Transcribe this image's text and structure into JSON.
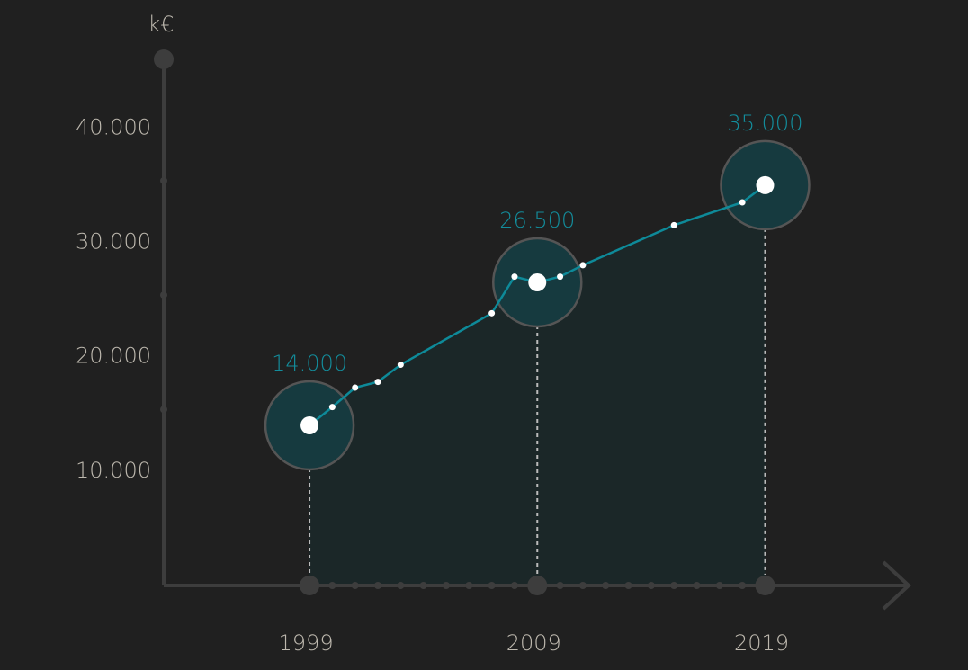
{
  "chart_data": {
    "type": "area",
    "y_label": "k€",
    "x": [
      1999,
      2000,
      2001,
      2002,
      2003,
      2007,
      2008,
      2009,
      2010,
      2011,
      2015,
      2018,
      2019
    ],
    "values": [
      14000,
      15600,
      17300,
      17800,
      19300,
      23800,
      27000,
      26500,
      27000,
      28000,
      31500,
      33500,
      35000
    ],
    "value_labels": [
      "14.000",
      null,
      null,
      null,
      null,
      null,
      null,
      "26.500",
      null,
      null,
      null,
      null,
      "35.000"
    ],
    "color": "#0e8a99",
    "xlim": [
      1992.6,
      2025.3
    ],
    "xticks": [
      1999,
      2009,
      2019
    ],
    "ylim": [
      0,
      46000
    ],
    "yticks": [
      {
        "value": 10000,
        "label": "10.000"
      },
      {
        "value": 20000,
        "label": "20.000"
      },
      {
        "value": 30000,
        "label": "30.000"
      },
      {
        "value": 40000,
        "label": "40.000"
      }
    ]
  }
}
